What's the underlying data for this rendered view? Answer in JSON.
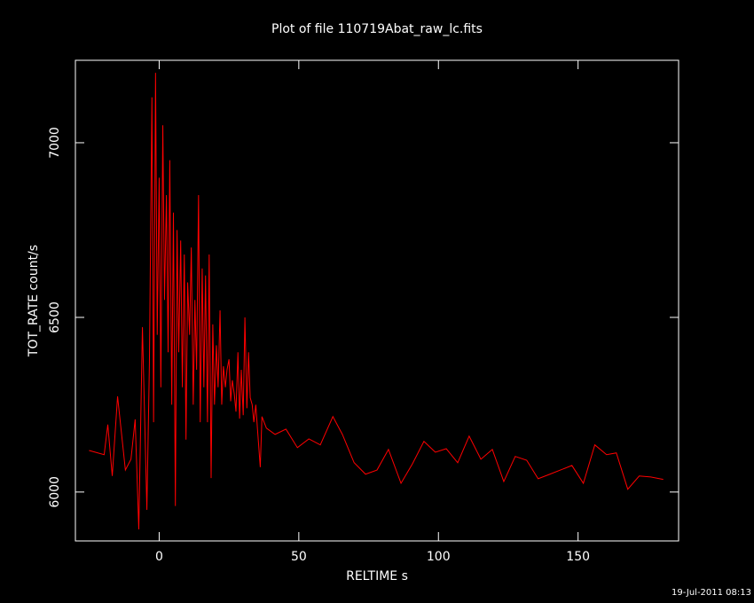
{
  "chart_data": {
    "type": "line",
    "title": "Plot of file 110719Abat_raw_lc.fits",
    "x_label": "RELTIME  s",
    "y_label": "TOT_RATE  count/s",
    "footer": "19-Jul-2011 08:13",
    "color": "#ff0000",
    "x": [
      -25.1,
      -19.7,
      -18.4,
      -16.8,
      -14.9,
      -12.1,
      -10.1,
      -8.6,
      -7.3,
      -6.0,
      -4.4,
      -3.5,
      -2.6,
      -2.0,
      -1.3,
      -0.7,
      0.0,
      0.6,
      1.3,
      1.9,
      2.6,
      3.2,
      3.8,
      4.5,
      5.1,
      5.8,
      6.4,
      7.0,
      7.7,
      8.3,
      9.0,
      9.6,
      10.2,
      10.9,
      11.5,
      12.2,
      12.8,
      13.4,
      14.1,
      14.7,
      15.4,
      16.0,
      16.6,
      17.3,
      17.9,
      18.6,
      19.2,
      19.8,
      20.5,
      21.1,
      21.8,
      22.4,
      23.0,
      23.7,
      24.3,
      25.0,
      25.6,
      26.2,
      26.9,
      27.5,
      28.2,
      28.8,
      29.4,
      30.1,
      30.7,
      31.4,
      32.0,
      32.6,
      33.3,
      33.9,
      34.6,
      35.2,
      36.2,
      36.8,
      38.4,
      41.5,
      45.4,
      49.5,
      53.6,
      57.7,
      62.2,
      65.6,
      69.8,
      73.9,
      78.0,
      82.1,
      86.6,
      90.7,
      94.8,
      98.9,
      102.8,
      106.9,
      111.0,
      115.2,
      119.3,
      123.4,
      127.5,
      131.6,
      135.7,
      139.9,
      147.8,
      151.9,
      156.0,
      160.2,
      163.7,
      167.8,
      171.9,
      176.0,
      180.5
    ],
    "values": [
      6119,
      6107,
      6193,
      6046,
      6274,
      6063,
      6094,
      6208,
      5893,
      6472,
      5949,
      6368,
      7130,
      6200,
      7200,
      6450,
      6900,
      6300,
      7050,
      6550,
      6850,
      6400,
      6950,
      6250,
      6800,
      5960,
      6750,
      6400,
      6720,
      6300,
      6680,
      6150,
      6600,
      6450,
      6700,
      6250,
      6550,
      6350,
      6850,
      6200,
      6640,
      6300,
      6620,
      6200,
      6680,
      6040,
      6480,
      6250,
      6420,
      6300,
      6520,
      6250,
      6360,
      6300,
      6350,
      6380,
      6260,
      6320,
      6280,
      6230,
      6400,
      6210,
      6350,
      6220,
      6500,
      6240,
      6400,
      6270,
      6250,
      6200,
      6250,
      6180,
      6071,
      6216,
      6183,
      6165,
      6180,
      6127,
      6152,
      6135,
      6216,
      6165,
      6084,
      6051,
      6063,
      6122,
      6025,
      6081,
      6145,
      6114,
      6124,
      6084,
      6160,
      6094,
      6122,
      6030,
      6102,
      6091,
      6038,
      6051,
      6076,
      6025,
      6135,
      6107,
      6112,
      6008,
      6046,
      6043,
      6036
    ],
    "xlim": [
      -30,
      186
    ],
    "ylim": [
      5860,
      7236
    ],
    "xticks": [
      0,
      50,
      100,
      150
    ],
    "yticks": [
      6000,
      6500,
      7000
    ]
  }
}
